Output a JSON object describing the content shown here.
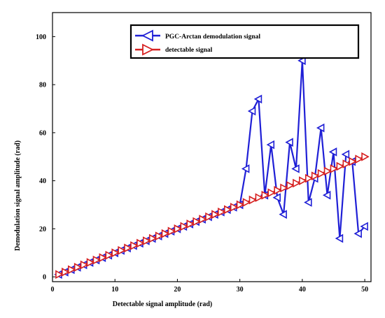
{
  "chart_data": {
    "type": "line",
    "title": "",
    "xlabel": "Detectable signal amplitude (rad)",
    "ylabel": "Demodulation signal amplitude (rad)",
    "xlim": [
      0,
      51
    ],
    "ylim": [
      -2,
      110
    ],
    "xticks": [
      0,
      10,
      20,
      30,
      40,
      50
    ],
    "yticks": [
      0,
      20,
      40,
      60,
      80,
      100
    ],
    "grid": false,
    "legend_position": "top-right",
    "x": [
      1,
      2,
      3,
      4,
      5,
      6,
      7,
      8,
      9,
      10,
      11,
      12,
      13,
      14,
      15,
      16,
      17,
      18,
      19,
      20,
      21,
      22,
      23,
      24,
      25,
      26,
      27,
      28,
      29,
      30,
      31,
      32,
      33,
      34,
      35,
      36,
      37,
      38,
      39,
      40,
      41,
      42,
      43,
      44,
      45,
      46,
      47,
      48,
      49,
      50
    ],
    "series": [
      {
        "name": "PGC-Arctan demodulation signal",
        "color": "#1f1fd6",
        "marker": "triangle-left",
        "values": [
          1,
          2,
          3,
          4,
          5,
          6,
          7,
          8,
          9,
          10,
          11,
          12,
          13,
          14,
          15,
          16,
          17,
          18,
          19,
          20,
          21,
          22,
          23,
          24,
          25,
          26,
          27,
          28,
          29,
          30,
          45,
          69,
          74,
          34,
          55,
          33,
          26,
          56,
          45,
          90,
          31,
          41,
          62,
          34,
          52,
          16,
          51,
          48,
          18,
          21
        ]
      },
      {
        "name": "detectable signal",
        "color": "#d62020",
        "marker": "triangle-right",
        "values": [
          1,
          2,
          3,
          4,
          5,
          6,
          7,
          8,
          9,
          10,
          11,
          12,
          13,
          14,
          15,
          16,
          17,
          18,
          19,
          20,
          21,
          22,
          23,
          24,
          25,
          26,
          27,
          28,
          29,
          30,
          31,
          32,
          33,
          34,
          35,
          36,
          37,
          38,
          39,
          40,
          41,
          42,
          43,
          44,
          45,
          46,
          47,
          48,
          49,
          50
        ]
      }
    ]
  }
}
